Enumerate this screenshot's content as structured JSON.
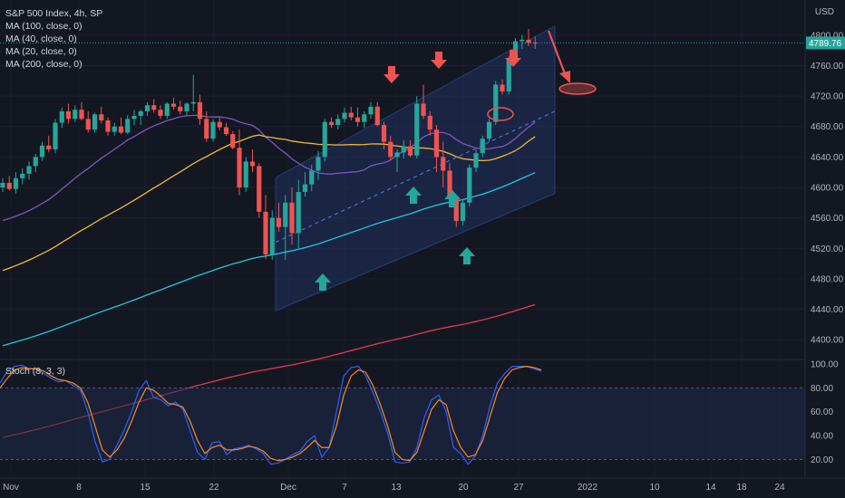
{
  "header": {
    "title": "S&P 500 Index, 4h, SP",
    "indicators": [
      "MA (100, close, 0)",
      "MA (40, close, 0)",
      "MA (20, close, 0)",
      "MA (200, close, 0)"
    ],
    "currency": "USD",
    "last_price": "4789.76",
    "stoch_label": "Stoch (8, 3, 3)"
  },
  "colors": {
    "background": "#131722",
    "bull": "#26a69a",
    "bear": "#ef5350",
    "ma100": "#26c6da",
    "ma40": "#f2b83a",
    "ma20": "#7e57c2",
    "ma200": "#e53950",
    "channel": "#243a74",
    "stoch_k": "#2962ff",
    "stoch_d": "#ff8a1f"
  },
  "chart_data": [
    {
      "type": "candlestick",
      "ylim": [
        4380,
        4820
      ],
      "y_ticks": [
        "4800.00",
        "4760.00",
        "4720.00",
        "4680.00",
        "4640.00",
        "4600.00",
        "4560.00",
        "4520.00",
        "4480.00",
        "4440.00",
        "4400.00"
      ],
      "x_ticks": [
        "Nov",
        "8",
        "15",
        "22",
        "Dec",
        "7",
        "13",
        "20",
        "27",
        "2022",
        "10",
        "14",
        "18",
        "24"
      ],
      "annotations": {
        "down_arrows": 3,
        "up_arrows": 4,
        "channel": "ascending",
        "target_price_approx": 4720
      },
      "candles": [
        [
          4600,
          4612,
          4594,
          4606
        ],
        [
          4606,
          4615,
          4596,
          4598
        ],
        [
          4598,
          4620,
          4592,
          4612
        ],
        [
          4612,
          4625,
          4604,
          4618
        ],
        [
          4618,
          4634,
          4610,
          4628
        ],
        [
          4628,
          4644,
          4620,
          4640
        ],
        [
          4640,
          4660,
          4635,
          4655
        ],
        [
          4655,
          4668,
          4646,
          4650
        ],
        [
          4650,
          4690,
          4645,
          4685
        ],
        [
          4685,
          4705,
          4678,
          4700
        ],
        [
          4700,
          4710,
          4684,
          4690
        ],
        [
          4690,
          4708,
          4686,
          4702
        ],
        [
          4702,
          4712,
          4688,
          4690
        ],
        [
          4690,
          4700,
          4672,
          4676
        ],
        [
          4676,
          4698,
          4672,
          4696
        ],
        [
          4696,
          4706,
          4684,
          4688
        ],
        [
          4688,
          4692,
          4668,
          4673
        ],
        [
          4673,
          4685,
          4668,
          4680
        ],
        [
          4680,
          4692,
          4670,
          4672
        ],
        [
          4672,
          4695,
          4670,
          4690
        ],
        [
          4690,
          4702,
          4682,
          4694
        ],
        [
          4694,
          4702,
          4682,
          4700
        ],
        [
          4700,
          4712,
          4694,
          4708
        ],
        [
          4708,
          4716,
          4698,
          4702
        ],
        [
          4702,
          4708,
          4690,
          4694
        ],
        [
          4694,
          4712,
          4690,
          4710
        ],
        [
          4710,
          4718,
          4702,
          4706
        ],
        [
          4706,
          4714,
          4696,
          4700
        ],
        [
          4700,
          4712,
          4694,
          4710
        ],
        [
          4710,
          4748,
          4700,
          4712
        ],
        [
          4712,
          4722,
          4682,
          4690
        ],
        [
          4690,
          4700,
          4660,
          4664
        ],
        [
          4664,
          4690,
          4660,
          4686
        ],
        [
          4686,
          4692,
          4675,
          4679
        ],
        [
          4679,
          4685,
          4668,
          4670
        ],
        [
          4670,
          4674,
          4650,
          4652
        ],
        [
          4652,
          4676,
          4590,
          4600
        ],
        [
          4600,
          4640,
          4594,
          4634
        ],
        [
          4634,
          4650,
          4620,
          4628
        ],
        [
          4628,
          4632,
          4560,
          4568
        ],
        [
          4568,
          4590,
          4506,
          4512
        ],
        [
          4512,
          4570,
          4505,
          4560
        ],
        [
          4560,
          4580,
          4542,
          4548
        ],
        [
          4548,
          4590,
          4505,
          4580
        ],
        [
          4580,
          4600,
          4525,
          4540
        ],
        [
          4540,
          4610,
          4520,
          4594
        ],
        [
          4594,
          4620,
          4588,
          4604
        ],
        [
          4604,
          4630,
          4595,
          4622
        ],
        [
          4622,
          4648,
          4610,
          4640
        ],
        [
          4640,
          4690,
          4634,
          4686
        ],
        [
          4686,
          4692,
          4678,
          4682
        ],
        [
          4682,
          4696,
          4676,
          4690
        ],
        [
          4690,
          4705,
          4685,
          4698
        ],
        [
          4698,
          4706,
          4688,
          4692
        ],
        [
          4692,
          4705,
          4680,
          4686
        ],
        [
          4686,
          4700,
          4678,
          4696
        ],
        [
          4696,
          4712,
          4690,
          4706
        ],
        [
          4706,
          4712,
          4680,
          4682
        ],
        [
          4682,
          4686,
          4650,
          4660
        ],
        [
          4660,
          4668,
          4636,
          4640
        ],
        [
          4640,
          4650,
          4620,
          4646
        ],
        [
          4646,
          4662,
          4638,
          4654
        ],
        [
          4654,
          4662,
          4640,
          4642
        ],
        [
          4642,
          4720,
          4638,
          4710
        ],
        [
          4710,
          4735,
          4690,
          4694
        ],
        [
          4694,
          4700,
          4668,
          4676
        ],
        [
          4676,
          4682,
          4620,
          4640
        ],
        [
          4640,
          4660,
          4600,
          4622
        ],
        [
          4622,
          4632,
          4580,
          4585
        ],
        [
          4585,
          4590,
          4548,
          4556
        ],
        [
          4556,
          4585,
          4550,
          4580
        ],
        [
          4580,
          4630,
          4575,
          4626
        ],
        [
          4626,
          4650,
          4620,
          4645
        ],
        [
          4645,
          4668,
          4640,
          4664
        ],
        [
          4664,
          4690,
          4660,
          4686
        ],
        [
          4686,
          4740,
          4682,
          4735
        ],
        [
          4735,
          4742,
          4722,
          4726
        ],
        [
          4726,
          4772,
          4722,
          4768
        ],
        [
          4768,
          4796,
          4765,
          4792
        ],
        [
          4792,
          4800,
          4782,
          4794
        ],
        [
          4794,
          4808,
          4786,
          4790
        ],
        [
          4790,
          4798,
          4782,
          4789.76
        ]
      ]
    },
    {
      "type": "line",
      "title": "Stoch (8, 3, 3)",
      "ylim": [
        12,
        100
      ],
      "y_ticks": [
        "100.00",
        "80.00",
        "60.00",
        "40.00",
        "20.00"
      ],
      "bands": [
        20,
        80
      ],
      "series": [
        {
          "name": "%K",
          "values": [
            84,
            94,
            98,
            99,
            96,
            96,
            92,
            88,
            85,
            86,
            82,
            78,
            60,
            35,
            18,
            20,
            32,
            45,
            60,
            78,
            86,
            72,
            70,
            65,
            68,
            62,
            44,
            26,
            20,
            34,
            35,
            24,
            29,
            30,
            32,
            29,
            25,
            16,
            17,
            20,
            24,
            27,
            35,
            40,
            22,
            30,
            60,
            90,
            97,
            98,
            90,
            76,
            60,
            42,
            18,
            17,
            18,
            30,
            55,
            70,
            74,
            60,
            30,
            25,
            16,
            23,
            40,
            65,
            84,
            92,
            98,
            98,
            98,
            96,
            94
          ]
        },
        {
          "name": "%D",
          "values": [
            80,
            88,
            95,
            97,
            96,
            96,
            94,
            90,
            87,
            86,
            84,
            80,
            68,
            48,
            28,
            22,
            28,
            38,
            52,
            68,
            80,
            78,
            73,
            67,
            66,
            64,
            52,
            36,
            25,
            30,
            32,
            28,
            28,
            29,
            31,
            30,
            27,
            21,
            19,
            20,
            22,
            25,
            30,
            36,
            30,
            30,
            48,
            74,
            90,
            95,
            93,
            82,
            66,
            48,
            26,
            20,
            19,
            26,
            44,
            62,
            70,
            66,
            44,
            30,
            22,
            24,
            36,
            56,
            76,
            88,
            95,
            97,
            98,
            97,
            95
          ]
        }
      ]
    }
  ]
}
